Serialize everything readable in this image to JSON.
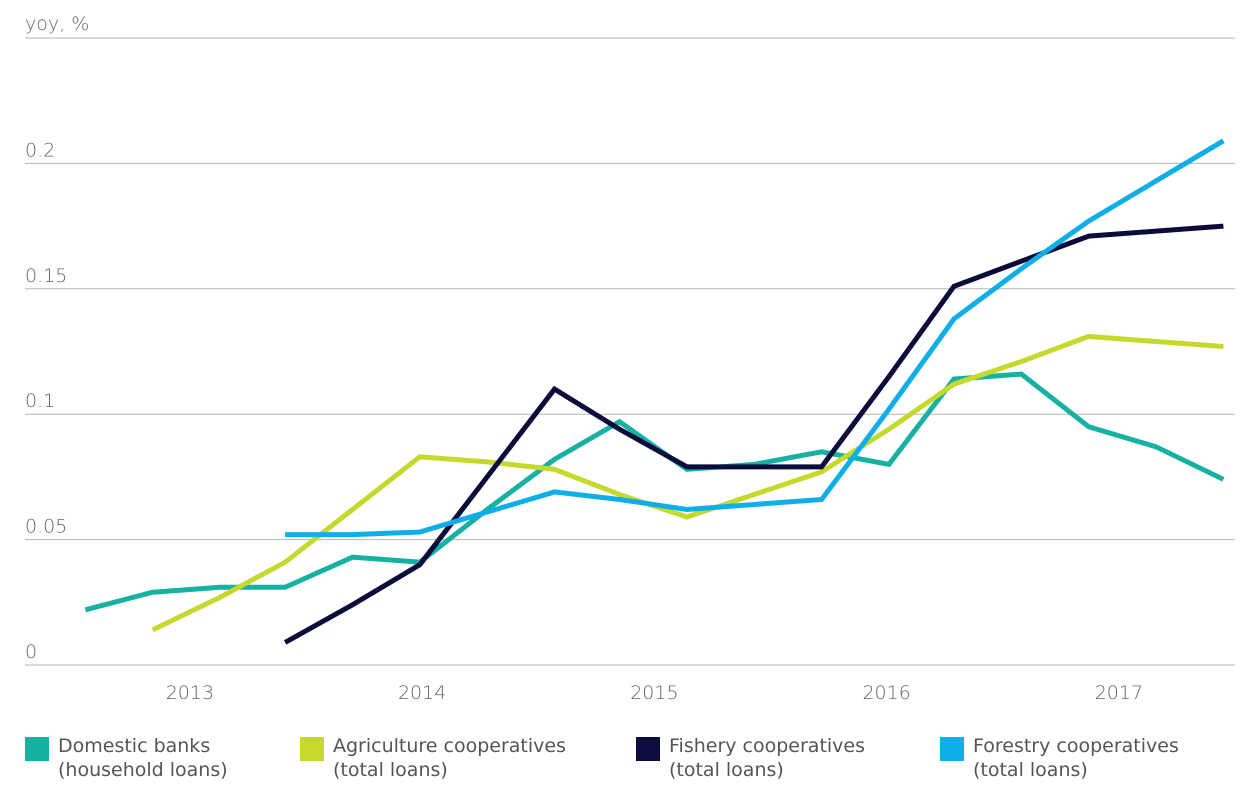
{
  "chart_data": {
    "type": "line",
    "y_label": "yoy, %",
    "x": [
      2012.55,
      2012.84,
      2013.13,
      2013.41,
      2013.7,
      2013.99,
      2014.28,
      2014.57,
      2014.85,
      2015.14,
      2015.43,
      2015.72,
      2016.01,
      2016.29,
      2016.58,
      2016.87,
      2017.16,
      2017.45
    ],
    "xlim": [
      2012.29,
      2017.5
    ],
    "xticks": [
      2013,
      2014,
      2015,
      2016,
      2017
    ],
    "ylim": [
      0,
      0.25
    ],
    "yticks": [
      0,
      0.05,
      0.1,
      0.15,
      0.2
    ],
    "grid": true,
    "legend": "bottom",
    "series": [
      {
        "name": "Domestic banks\n(household loans)",
        "color": "#17b1a3",
        "values": [
          0.022,
          0.029,
          0.031,
          0.031,
          0.043,
          0.041,
          0.062,
          0.082,
          0.097,
          0.078,
          0.08,
          0.085,
          0.08,
          0.114,
          0.116,
          0.095,
          0.087,
          0.074
        ]
      },
      {
        "name": "Agriculture cooperatives\n(total loans)",
        "color": "#c5d92d",
        "values": [
          null,
          0.014,
          0.027,
          0.041,
          0.062,
          0.083,
          0.081,
          0.078,
          0.068,
          0.059,
          0.068,
          0.077,
          0.094,
          0.112,
          0.121,
          0.131,
          0.129,
          0.127
        ]
      },
      {
        "name": "Fishery cooperatives\n(total loans)",
        "color": "#0b0c3b",
        "values": [
          null,
          null,
          null,
          0.009,
          0.024,
          0.04,
          0.075,
          0.11,
          0.094,
          0.079,
          0.079,
          0.079,
          0.115,
          0.151,
          0.161,
          0.171,
          0.173,
          0.175
        ]
      },
      {
        "name": "Forestry cooperatives\n(total loans)",
        "color": "#0eaee8",
        "values": [
          null,
          null,
          null,
          0.052,
          0.052,
          0.053,
          0.061,
          0.069,
          0.066,
          0.062,
          0.064,
          0.066,
          0.102,
          0.138,
          0.158,
          0.177,
          0.193,
          0.209
        ]
      }
    ]
  }
}
